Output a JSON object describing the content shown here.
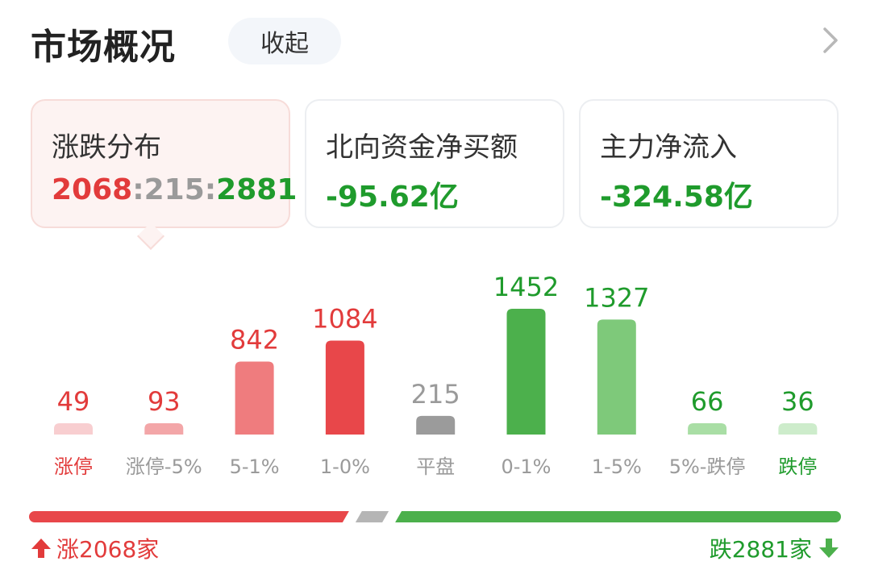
{
  "header": {
    "title": "市场概况",
    "collapse_label": "收起"
  },
  "cards": [
    {
      "label": "涨跌分布",
      "up": "2068",
      "flat": "215",
      "down": "2881",
      "sep": ":"
    },
    {
      "label": "北向资金净买额",
      "value": "-95.62亿"
    },
    {
      "label": "主力净流入",
      "value": "-324.58亿"
    }
  ],
  "colors": {
    "red": "#e8474a",
    "green": "#4cb04c",
    "gray": "#9b9b9b"
  },
  "chart_data": {
    "type": "bar",
    "categories": [
      "涨停",
      "涨停-5%",
      "5-1%",
      "1-0%",
      "平盘",
      "0-1%",
      "1-5%",
      "5%-跌停",
      "跌停"
    ],
    "values": [
      49,
      93,
      842,
      1084,
      215,
      1452,
      1327,
      66,
      36
    ],
    "colors": [
      "#f8ced0",
      "#f3a6a8",
      "#ef7c7e",
      "#e8474a",
      "#9b9b9b",
      "#4cb04c",
      "#7ec97a",
      "#a9dea5",
      "#cdeccb"
    ],
    "label_colors": [
      "#e23b3b",
      "#e23b3b",
      "#e23b3b",
      "#e23b3b",
      "#9a9a9a",
      "#1f9b2c",
      "#1f9b2c",
      "#1f9b2c",
      "#1f9b2c"
    ],
    "cat_colors": [
      "#e23b3b",
      "#9a9a9a",
      "#9a9a9a",
      "#9a9a9a",
      "#9a9a9a",
      "#9a9a9a",
      "#9a9a9a",
      "#9a9a9a",
      "#1f9b2c"
    ]
  },
  "summary": {
    "up_count": 2068,
    "flat_count": 215,
    "down_count": 2881,
    "up_text": "涨2068家",
    "down_text": "跌2881家"
  }
}
